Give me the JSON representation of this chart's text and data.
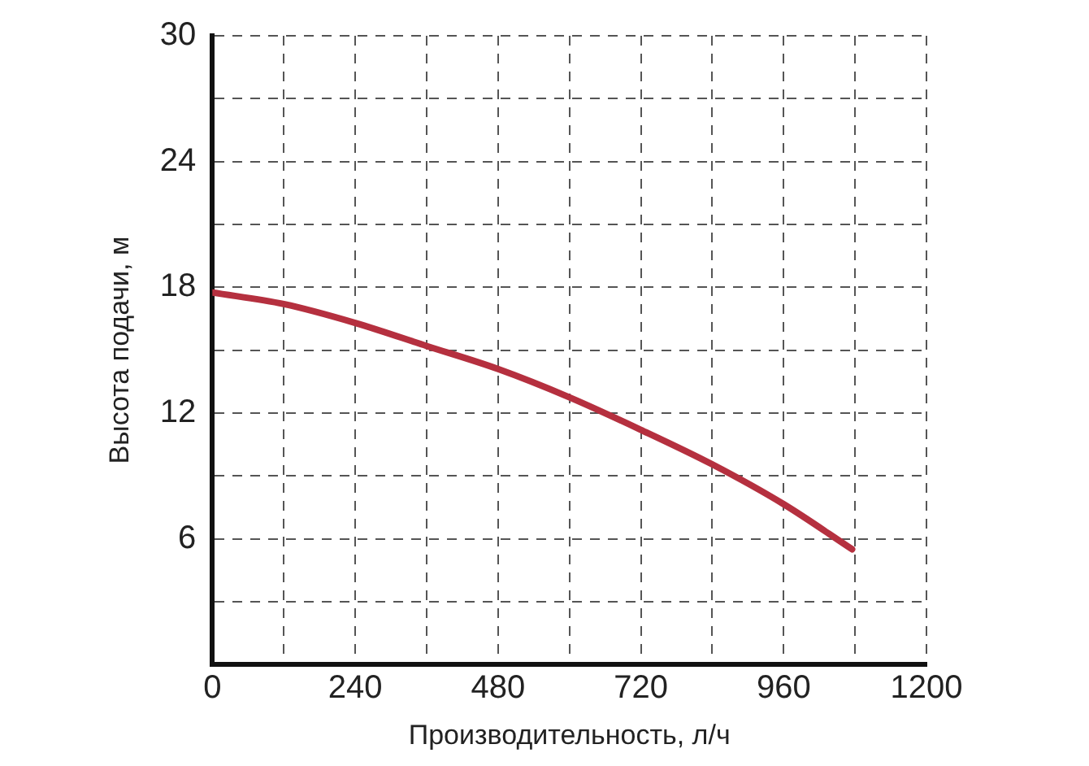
{
  "chart_data": {
    "type": "line",
    "xlabel": "Производительность, л/ч",
    "ylabel": "Высота подачи, м",
    "x": [
      0,
      120,
      240,
      360,
      480,
      600,
      720,
      840,
      960,
      1075
    ],
    "series": [
      {
        "color": "#b5303f",
        "values": [
          17.75,
          17.2,
          16.3,
          15.2,
          14.1,
          12.75,
          11.2,
          9.55,
          7.65,
          5.5
        ]
      }
    ],
    "xlim": [
      0,
      1200
    ],
    "ylim": [
      0,
      30
    ],
    "xticks": [
      0,
      {
        "value": 120,
        "label": null
      },
      240,
      {
        "value": 360,
        "label": null
      },
      480,
      {
        "value": 600,
        "label": null
      },
      720,
      {
        "value": 840,
        "label": null
      },
      960,
      {
        "value": 1080,
        "label": null
      },
      1200
    ],
    "yticks": [
      {
        "value": 3,
        "label": null
      },
      6,
      {
        "value": 9,
        "label": null
      },
      12,
      {
        "value": 15,
        "label": null
      },
      18,
      {
        "value": 21,
        "label": null
      },
      24,
      {
        "value": 27,
        "label": null
      },
      30
    ],
    "grid": true,
    "legend": false,
    "marker": "none",
    "line_style": "solid"
  }
}
